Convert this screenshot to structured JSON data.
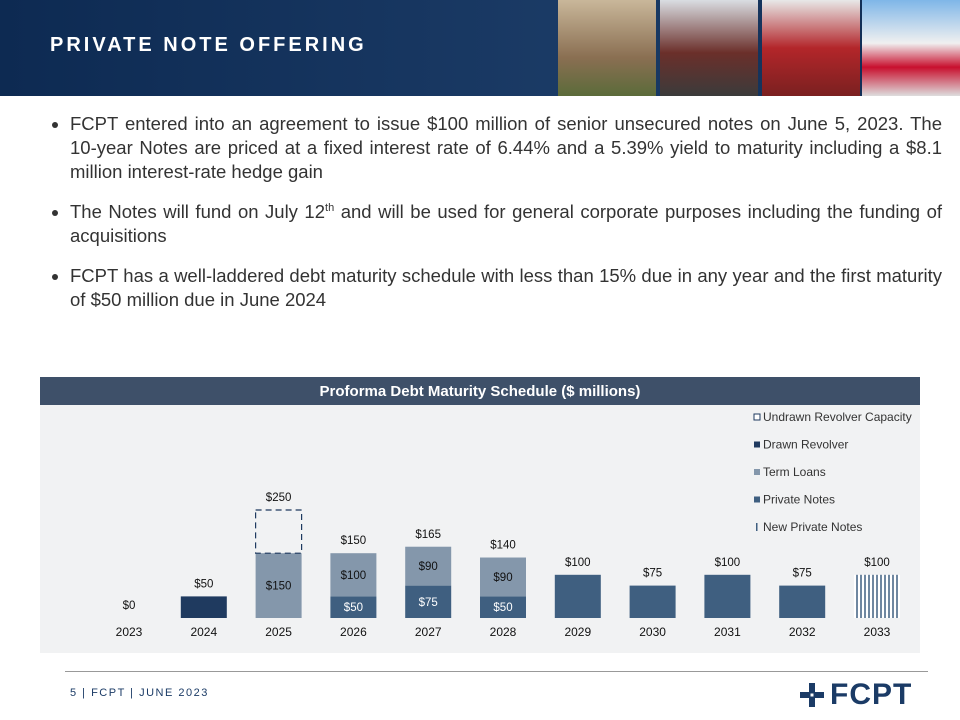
{
  "header": {
    "title": "PRIVATE NOTE OFFERING"
  },
  "bullets": [
    [
      "FCPT entered into an agreement to issue $100 million of senior unsecured notes on June 5, 2023. The 10-year Notes are priced at a fixed interest rate of 6.44% and a 5.39% yield to maturity including a $8.1 million interest-rate hedge gain"
    ],
    [
      "The Notes will fund on July 12",
      "th",
      " and will be used for general corporate purposes including the funding of acquisitions"
    ],
    [
      "FCPT has a well-laddered debt maturity schedule with less than 15% due in any year and the first maturity of $50 million due in June 2024"
    ]
  ],
  "chart_data": {
    "type": "stacked-bar",
    "title": "Proforma Debt Maturity Schedule ($ millions)",
    "categories": [
      "2023",
      "2024",
      "2025",
      "2026",
      "2027",
      "2028",
      "2029",
      "2030",
      "2031",
      "2032",
      "2033"
    ],
    "series": [
      {
        "name": "Undrawn Revolver Capacity",
        "color": "#1f3a5f",
        "style": "dashed-outline",
        "values": [
          null,
          null,
          100,
          null,
          null,
          null,
          null,
          null,
          null,
          null,
          null
        ]
      },
      {
        "name": "Drawn Revolver",
        "color": "#1f3a5f",
        "style": "solid",
        "values": [
          null,
          50,
          null,
          null,
          null,
          null,
          null,
          null,
          null,
          null,
          null
        ]
      },
      {
        "name": "Term Loans",
        "color": "#8497ab",
        "style": "solid",
        "values": [
          null,
          null,
          150,
          100,
          90,
          90,
          null,
          null,
          null,
          null,
          null
        ],
        "value_labels": [
          null,
          null,
          "$150",
          "$100",
          "$90",
          "$90",
          null,
          null,
          null,
          null,
          null
        ]
      },
      {
        "name": "Private Notes",
        "color": "#3f5f80",
        "style": "solid",
        "values": [
          null,
          null,
          null,
          50,
          75,
          50,
          100,
          75,
          100,
          75,
          null
        ],
        "value_labels": [
          null,
          null,
          null,
          "$50",
          "$75",
          "$50",
          null,
          null,
          null,
          null,
          null
        ]
      },
      {
        "name": "New Private Notes",
        "color": "#3f5f80",
        "style": "stripes",
        "values": [
          null,
          null,
          null,
          null,
          null,
          null,
          null,
          null,
          null,
          null,
          100
        ]
      }
    ],
    "totals": {
      "values": [
        0,
        50,
        250,
        150,
        165,
        140,
        100,
        75,
        100,
        75,
        100
      ],
      "value_labels": [
        "$0",
        "$50",
        "$250",
        "$150",
        "$165",
        "$140",
        "$100",
        "$75",
        "$100",
        "$75",
        "$100"
      ]
    },
    "legend": "top-right"
  },
  "footer": {
    "page": "5 | FCPT | JUNE 2023",
    "logo": "FCPT"
  }
}
